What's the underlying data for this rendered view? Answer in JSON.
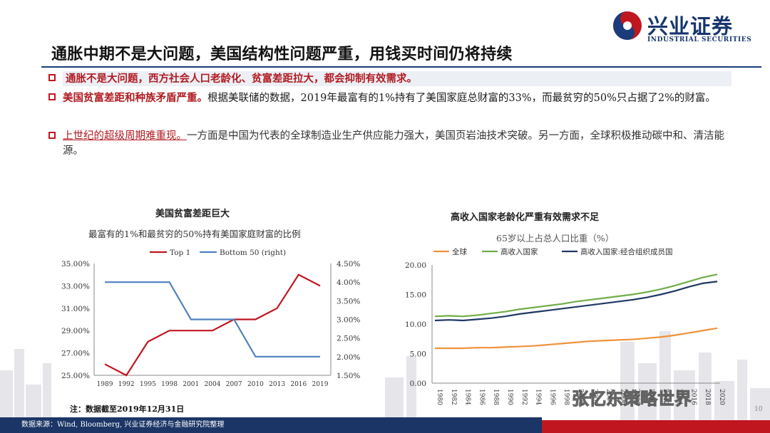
{
  "brand": {
    "name_cn": "兴业证券",
    "name_en": "INDUSTRIAL SECURITIES"
  },
  "title": "通胀中期不是大问题，美国结构性问题严重，用钱买时间仍将持续",
  "bullets": [
    {
      "lead": "通胀不是大问题，西方社会人口老龄化、贫富差距拉大，都会抑制有效需求。",
      "body": ""
    },
    {
      "lead": "美国贫富差距和种族矛盾严重。",
      "body": "根据美联储的数据，2019年最富有的1%持有了美国家庭总财富的33%，而最贫穷的50%只占据了2%的财富。"
    },
    {
      "lead": "上世纪的超级周期难重现。",
      "body": "一方面是中国为代表的全球制造业生产供应能力强大，美国页岩油技术突破。另一方面，全球积极推动碳中和、清洁能源。"
    }
  ],
  "chart_left": {
    "heading": "美国贫富差距巨大",
    "subtitle": "最富有的1%和最贫穷的50%持有美国家庭财富的比例",
    "note": "注：数据截至2019年12月31日"
  },
  "chart_right": {
    "heading": "高收入国家老龄化严重有效需求不足",
    "subtitle": "65岁以上占总人口比重（%）"
  },
  "footer": {
    "source": "数据来源：Wind, Bloomberg, 兴业证券经济与金融研究院整理",
    "page": "10"
  },
  "watermark": "张忆东策略世界",
  "chart_data": [
    {
      "type": "line",
      "x": [
        "1989",
        "1992",
        "1995",
        "1998",
        "2001",
        "2004",
        "2007",
        "2010",
        "2013",
        "2016",
        "2019"
      ],
      "series": [
        {
          "name": "Top 1",
          "axis": "left",
          "color": "#c0161f",
          "values": [
            26,
            25,
            28,
            29,
            29,
            29,
            30,
            30,
            31,
            34,
            33
          ]
        },
        {
          "name": "Bottom 50 (right)",
          "axis": "right",
          "color": "#4f81bd",
          "values": [
            4,
            4,
            4,
            4,
            3,
            3,
            3,
            2,
            2,
            2,
            2
          ]
        }
      ],
      "y_left": {
        "ylim": [
          25,
          35
        ],
        "ticks": [
          "25.00%",
          "27.00%",
          "29.00%",
          "31.00%",
          "33.00%",
          "35.00%"
        ]
      },
      "y_right": {
        "ylim": [
          1.5,
          4.5
        ],
        "ticks": [
          "1.50%",
          "2.00%",
          "2.50%",
          "3.00%",
          "3.50%",
          "4.00%",
          "4.50%"
        ]
      },
      "grid": false,
      "legend": "top"
    },
    {
      "type": "line",
      "x": [
        "1980",
        "1982",
        "1984",
        "1986",
        "1988",
        "1990",
        "1992",
        "1994",
        "1996",
        "1998",
        "2000",
        "2002",
        "2004",
        "2006",
        "2008",
        "2010",
        "2012",
        "2014",
        "2016",
        "2018",
        "2020"
      ],
      "series": [
        {
          "name": "全球",
          "color": "#f0913a",
          "values": [
            5.9,
            5.9,
            5.9,
            6.0,
            6.0,
            6.1,
            6.2,
            6.3,
            6.5,
            6.7,
            6.9,
            7.1,
            7.2,
            7.3,
            7.4,
            7.6,
            7.8,
            8.1,
            8.5,
            8.9,
            9.3
          ]
        },
        {
          "name": "高收入国家",
          "color": "#70ad47",
          "values": [
            11.3,
            11.4,
            11.3,
            11.5,
            11.8,
            12.1,
            12.5,
            12.8,
            13.1,
            13.4,
            13.8,
            14.1,
            14.4,
            14.7,
            15.0,
            15.4,
            15.9,
            16.5,
            17.2,
            17.9,
            18.4
          ]
        },
        {
          "name": "高收入国家:经合组织成员国",
          "color": "#1f3864",
          "values": [
            10.6,
            10.7,
            10.6,
            10.8,
            11.0,
            11.3,
            11.7,
            12.0,
            12.3,
            12.6,
            12.9,
            13.2,
            13.5,
            13.8,
            14.1,
            14.5,
            15.0,
            15.6,
            16.3,
            16.9,
            17.2
          ]
        }
      ],
      "y": {
        "ylim": [
          0,
          20
        ],
        "ticks": [
          "0.00",
          "5.00",
          "10.00",
          "15.00",
          "20.00"
        ]
      },
      "grid": false,
      "legend": "top"
    }
  ]
}
